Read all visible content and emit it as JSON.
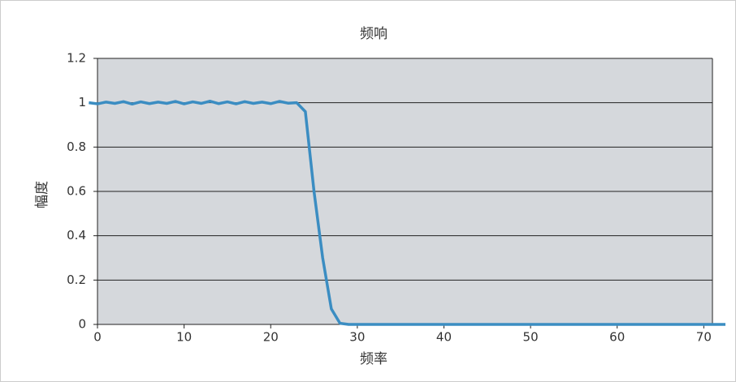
{
  "chart_data": {
    "type": "line",
    "title": "频响",
    "x_label": "频率",
    "y_label": "幅度",
    "x": [
      -1,
      0,
      1,
      2,
      3,
      4,
      5,
      6,
      7,
      8,
      9,
      10,
      11,
      12,
      13,
      14,
      15,
      16,
      17,
      18,
      19,
      20,
      21,
      22,
      23,
      24,
      25,
      26,
      27,
      28,
      29,
      35,
      40,
      50,
      60,
      70,
      72.5
    ],
    "series": [
      {
        "name": "频响",
        "color": "#3b8dc2",
        "values": [
          1.0,
          0.995,
          1.003,
          0.997,
          1.005,
          0.994,
          1.004,
          0.996,
          1.003,
          0.997,
          1.006,
          0.995,
          1.004,
          0.997,
          1.007,
          0.996,
          1.004,
          0.995,
          1.005,
          0.997,
          1.003,
          0.996,
          1.006,
          0.998,
          1.0,
          0.96,
          0.6,
          0.3,
          0.07,
          0.005,
          0,
          0,
          0,
          0,
          0,
          0,
          0
        ]
      }
    ],
    "xlim": [
      0,
      71
    ],
    "ylim": [
      0,
      1.2
    ],
    "xticks": [
      0,
      10,
      20,
      30,
      40,
      50,
      60,
      70
    ],
    "yticks": [
      0,
      0.2,
      0.4,
      0.6,
      0.8,
      1,
      1.2
    ],
    "grid": true
  }
}
